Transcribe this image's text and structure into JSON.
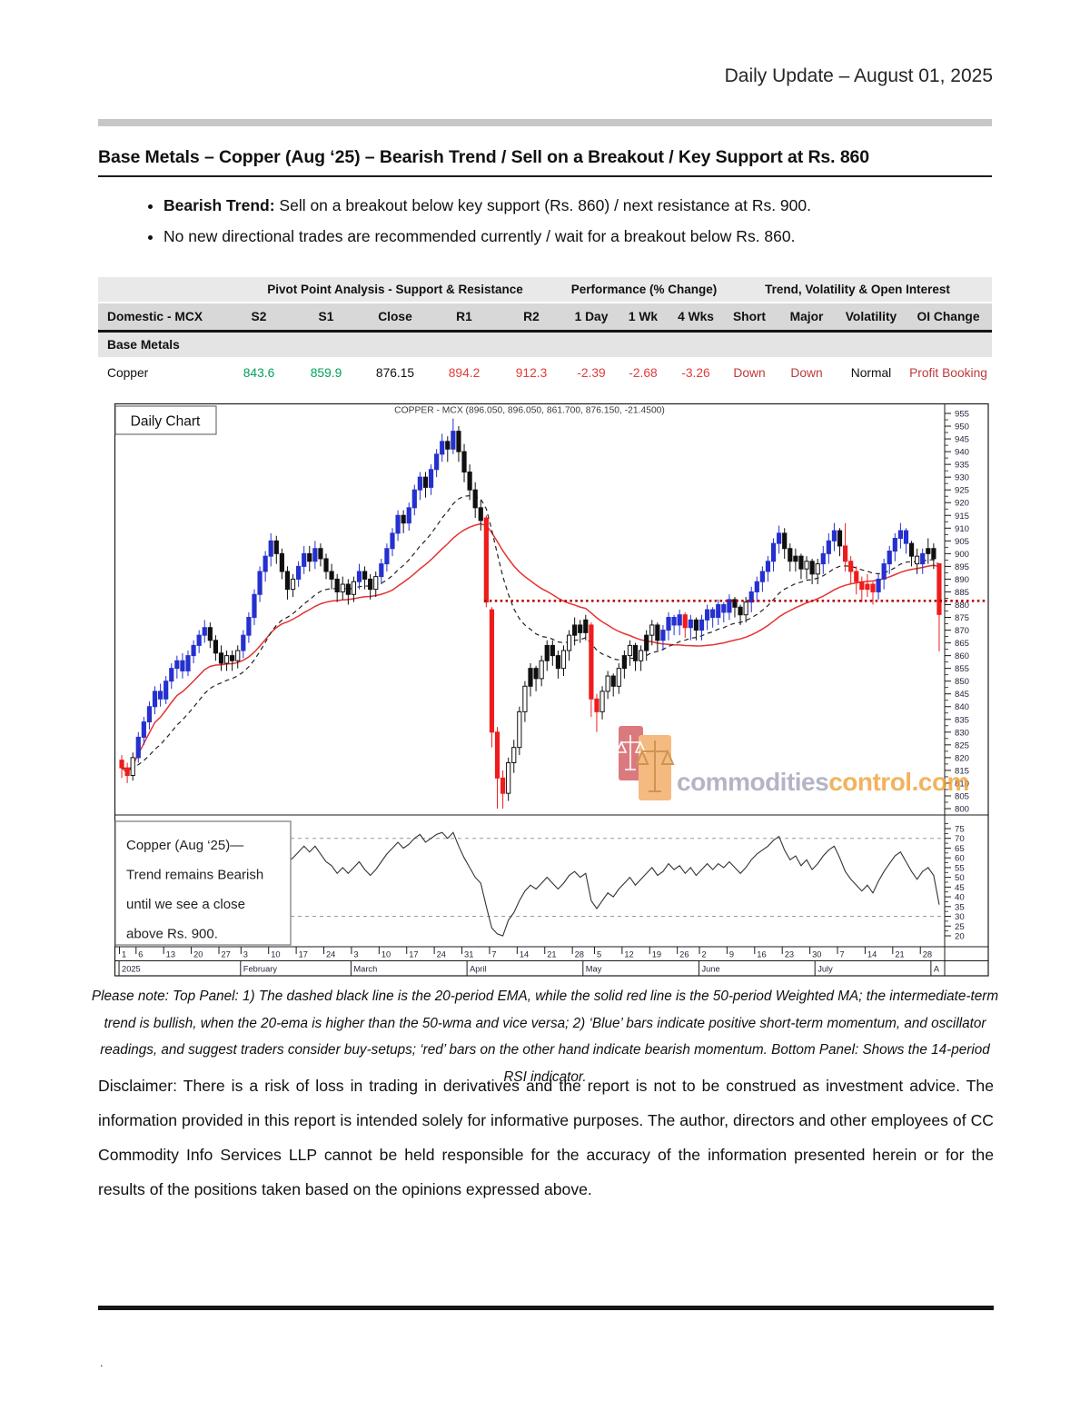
{
  "header": {
    "title": "Daily Update – August 01, 2025"
  },
  "article": {
    "title": "Base Metals – Copper (Aug  ‘25) – Bearish Trend / Sell on a Breakout / Key Support at Rs. 860",
    "bullets": [
      {
        "bold": "Bearish Trend:",
        "text": " Sell on a breakout below key support (Rs. 860) / next resistance at Rs. 900."
      },
      {
        "bold": "",
        "text": "No new directional trades are recommended currently / wait for a breakout below Rs. 860."
      }
    ]
  },
  "table": {
    "group_headers": [
      "Pivot Point Analysis - Support & Resistance",
      "Performance (% Change)",
      "Trend, Volatility & Open Interest"
    ],
    "columns": [
      "Domestic - MCX",
      "S2",
      "S1",
      "Close",
      "R1",
      "R2",
      "1 Day",
      "1 Wk",
      "4 Wks",
      "Short",
      "Major",
      "Volatility",
      "OI Change"
    ],
    "section": "Base Metals",
    "rows": [
      {
        "name": "Copper",
        "values": [
          "843.6",
          "859.9",
          "876.15",
          "894.2",
          "912.3",
          "-2.39",
          "-2.68",
          "-3.26",
          "Down",
          "Down",
          "Normal",
          "Profit Booking"
        ]
      }
    ]
  },
  "chart": {
    "panel_label": "Daily Chart",
    "title": "COPPER - MCX (896.050, 896.050, 861.700, 876.150, -21.4500)",
    "annotation_lines": [
      "Copper (Aug  ‘25)—",
      "Trend remains Bearish",
      "until we see a close",
      "above Rs. 900."
    ],
    "watermark": {
      "gray": "commodities",
      "orange": "control.com"
    }
  },
  "chart_data": {
    "type": "candlestick+rsi",
    "title": "COPPER - MCX (896.050, 896.050, 861.700, 876.150, -21.4500)",
    "price_axis": {
      "min": 800,
      "max": 955,
      "step": 5
    },
    "rsi_axis": {
      "min": 20,
      "max": 75,
      "step": 5,
      "guides": [
        70,
        30
      ]
    },
    "support_dotted_line": 881.5,
    "overlays": [
      "20-period EMA (dashed black)",
      "50-period WMA (solid red)"
    ],
    "x_months": [
      [
        "2025",
        0
      ],
      [
        "February",
        22
      ],
      [
        "March",
        42
      ],
      [
        "April",
        63
      ],
      [
        "May",
        84
      ],
      [
        "June",
        105
      ],
      [
        "July",
        126
      ],
      [
        "A",
        147
      ]
    ],
    "x_day_ticks": [
      [
        "1",
        0
      ],
      [
        "6",
        3
      ],
      [
        "13",
        8
      ],
      [
        "20",
        13
      ],
      [
        "27",
        18
      ],
      [
        "3",
        22
      ],
      [
        "10",
        27
      ],
      [
        "17",
        32
      ],
      [
        "24",
        37
      ],
      [
        "3",
        42
      ],
      [
        "10",
        47
      ],
      [
        "17",
        52
      ],
      [
        "24",
        57
      ],
      [
        "31",
        62
      ],
      [
        "7",
        67
      ],
      [
        "14",
        72
      ],
      [
        "21",
        77
      ],
      [
        "28",
        82
      ],
      [
        "5",
        86
      ],
      [
        "12",
        91
      ],
      [
        "19",
        96
      ],
      [
        "26",
        101
      ],
      [
        "2",
        105
      ],
      [
        "9",
        110
      ],
      [
        "16",
        115
      ],
      [
        "23",
        120
      ],
      [
        "30",
        125
      ],
      [
        "7",
        130
      ],
      [
        "14",
        135
      ],
      [
        "21",
        140
      ],
      [
        "28",
        145
      ]
    ],
    "candles": [
      [
        819,
        821,
        812,
        816,
        "r"
      ],
      [
        816,
        818,
        810,
        813,
        "r"
      ],
      [
        813,
        822,
        811,
        820,
        "w"
      ],
      [
        820,
        830,
        818,
        828,
        "b"
      ],
      [
        828,
        836,
        825,
        834,
        "b"
      ],
      [
        834,
        842,
        831,
        840,
        "b"
      ],
      [
        840,
        848,
        837,
        846,
        "b"
      ],
      [
        846,
        849,
        840,
        843,
        "b"
      ],
      [
        843,
        852,
        841,
        850,
        "b"
      ],
      [
        850,
        857,
        847,
        855,
        "b"
      ],
      [
        855,
        860,
        851,
        858,
        "b"
      ],
      [
        858,
        861,
        851,
        854,
        "b"
      ],
      [
        854,
        862,
        852,
        860,
        "b"
      ],
      [
        860,
        866,
        857,
        864,
        "b"
      ],
      [
        864,
        870,
        861,
        868,
        "b"
      ],
      [
        868,
        874,
        865,
        871,
        "b"
      ],
      [
        871,
        873,
        863,
        866,
        "k"
      ],
      [
        866,
        868,
        858,
        861,
        "k"
      ],
      [
        861,
        864,
        854,
        857,
        "k"
      ],
      [
        857,
        862,
        854,
        860,
        "w"
      ],
      [
        860,
        862,
        854,
        858,
        "k"
      ],
      [
        858,
        864,
        855,
        862,
        "w"
      ],
      [
        862,
        870,
        859,
        868,
        "b"
      ],
      [
        868,
        877,
        865,
        875,
        "b"
      ],
      [
        875,
        886,
        872,
        884,
        "b"
      ],
      [
        884,
        895,
        881,
        893,
        "b"
      ],
      [
        893,
        901,
        889,
        899,
        "b"
      ],
      [
        899,
        908,
        895,
        905,
        "b"
      ],
      [
        905,
        907,
        896,
        900,
        "k"
      ],
      [
        900,
        902,
        890,
        893,
        "k"
      ],
      [
        893,
        895,
        882,
        886,
        "k"
      ],
      [
        886,
        892,
        883,
        890,
        "w"
      ],
      [
        890,
        897,
        887,
        895,
        "b"
      ],
      [
        895,
        903,
        892,
        900,
        "b"
      ],
      [
        900,
        903,
        893,
        897,
        "k"
      ],
      [
        897,
        905,
        894,
        902,
        "b"
      ],
      [
        902,
        904,
        895,
        898,
        "k"
      ],
      [
        898,
        900,
        890,
        893,
        "k"
      ],
      [
        893,
        896,
        886,
        890,
        "k"
      ],
      [
        890,
        892,
        881,
        885,
        "k"
      ],
      [
        885,
        891,
        882,
        888,
        "w"
      ],
      [
        888,
        890,
        880,
        884,
        "k"
      ],
      [
        884,
        891,
        881,
        889,
        "w"
      ],
      [
        889,
        896,
        886,
        893,
        "b"
      ],
      [
        893,
        895,
        886,
        890,
        "k"
      ],
      [
        890,
        892,
        882,
        886,
        "k"
      ],
      [
        886,
        893,
        883,
        891,
        "w"
      ],
      [
        891,
        898,
        888,
        896,
        "b"
      ],
      [
        896,
        904,
        893,
        902,
        "b"
      ],
      [
        902,
        910,
        899,
        908,
        "b"
      ],
      [
        908,
        917,
        905,
        915,
        "b"
      ],
      [
        915,
        917,
        908,
        912,
        "k"
      ],
      [
        912,
        920,
        909,
        918,
        "b"
      ],
      [
        918,
        927,
        915,
        925,
        "b"
      ],
      [
        925,
        932,
        921,
        930,
        "b"
      ],
      [
        930,
        932,
        922,
        926,
        "k"
      ],
      [
        926,
        935,
        923,
        933,
        "b"
      ],
      [
        933,
        941,
        930,
        939,
        "b"
      ],
      [
        939,
        947,
        936,
        944,
        "b"
      ],
      [
        944,
        946,
        936,
        941,
        "k"
      ],
      [
        941,
        953,
        939,
        948,
        "b"
      ],
      [
        948,
        950,
        936,
        940,
        "k"
      ],
      [
        940,
        943,
        928,
        932,
        "k"
      ],
      [
        932,
        935,
        921,
        925,
        "k"
      ],
      [
        925,
        928,
        914,
        918,
        "k"
      ],
      [
        918,
        921,
        909,
        913,
        "k"
      ],
      [
        914,
        915,
        879,
        881,
        "r"
      ],
      [
        878,
        879,
        824,
        830,
        "r"
      ],
      [
        830,
        832,
        800,
        812,
        "r"
      ],
      [
        812,
        815,
        800,
        806,
        "r"
      ],
      [
        806,
        820,
        803,
        818,
        "w"
      ],
      [
        818,
        827,
        814,
        824,
        "w"
      ],
      [
        824,
        840,
        821,
        838,
        "w"
      ],
      [
        838,
        850,
        834,
        848,
        "w"
      ],
      [
        848,
        857,
        844,
        855,
        "k"
      ],
      [
        855,
        856,
        846,
        851,
        "k"
      ],
      [
        851,
        860,
        848,
        858,
        "w"
      ],
      [
        858,
        866,
        854,
        864,
        "k"
      ],
      [
        864,
        866,
        856,
        860,
        "k"
      ],
      [
        860,
        862,
        851,
        855,
        "k"
      ],
      [
        855,
        864,
        852,
        862,
        "w"
      ],
      [
        862,
        870,
        858,
        868,
        "w"
      ],
      [
        868,
        875,
        864,
        872,
        "k"
      ],
      [
        872,
        874,
        865,
        869,
        "k"
      ],
      [
        869,
        876,
        866,
        874,
        "k"
      ],
      [
        872,
        873,
        836,
        843,
        "r"
      ],
      [
        843,
        845,
        830,
        838,
        "r"
      ],
      [
        838,
        848,
        835,
        846,
        "w"
      ],
      [
        846,
        854,
        843,
        852,
        "w"
      ],
      [
        852,
        853,
        844,
        848,
        "k"
      ],
      [
        848,
        857,
        845,
        855,
        "w"
      ],
      [
        855,
        862,
        851,
        860,
        "k"
      ],
      [
        860,
        866,
        856,
        864,
        "w"
      ],
      [
        864,
        865,
        854,
        858,
        "k"
      ],
      [
        858,
        864,
        854,
        862,
        "w"
      ],
      [
        862,
        870,
        858,
        868,
        "k"
      ],
      [
        868,
        874,
        864,
        872,
        "w"
      ],
      [
        872,
        873,
        862,
        866,
        "k"
      ],
      [
        866,
        872,
        862,
        870,
        "b"
      ],
      [
        870,
        877,
        866,
        875,
        "b"
      ],
      [
        875,
        876,
        868,
        872,
        "b"
      ],
      [
        872,
        878,
        868,
        876,
        "b"
      ],
      [
        876,
        877,
        867,
        871,
        "r"
      ],
      [
        871,
        876,
        866,
        874,
        "b"
      ],
      [
        874,
        875,
        866,
        870,
        "k"
      ],
      [
        870,
        876,
        866,
        874,
        "b"
      ],
      [
        874,
        880,
        870,
        878,
        "b"
      ],
      [
        878,
        879,
        871,
        875,
        "b"
      ],
      [
        875,
        882,
        872,
        880,
        "b"
      ],
      [
        880,
        881,
        873,
        877,
        "b"
      ],
      [
        877,
        884,
        874,
        882,
        "b"
      ],
      [
        882,
        883,
        875,
        879,
        "k"
      ],
      [
        879,
        880,
        872,
        876,
        "k"
      ],
      [
        876,
        883,
        873,
        881,
        "w"
      ],
      [
        881,
        887,
        877,
        885,
        "b"
      ],
      [
        885,
        891,
        881,
        889,
        "b"
      ],
      [
        889,
        895,
        885,
        893,
        "b"
      ],
      [
        893,
        899,
        889,
        897,
        "b"
      ],
      [
        897,
        906,
        893,
        904,
        "b"
      ],
      [
        904,
        911,
        900,
        908,
        "b"
      ],
      [
        908,
        910,
        898,
        902,
        "k"
      ],
      [
        902,
        904,
        893,
        897,
        "k"
      ],
      [
        897,
        902,
        893,
        899,
        "k"
      ],
      [
        899,
        900,
        890,
        894,
        "k"
      ],
      [
        894,
        899,
        890,
        897,
        "w"
      ],
      [
        897,
        898,
        888,
        892,
        "k"
      ],
      [
        892,
        898,
        888,
        896,
        "w"
      ],
      [
        896,
        903,
        892,
        900,
        "b"
      ],
      [
        900,
        908,
        896,
        905,
        "b"
      ],
      [
        905,
        912,
        901,
        909,
        "b"
      ],
      [
        909,
        910,
        899,
        903,
        "k"
      ],
      [
        903,
        912,
        893,
        897,
        "r"
      ],
      [
        897,
        899,
        888,
        893,
        "r"
      ],
      [
        893,
        895,
        884,
        889,
        "r"
      ],
      [
        889,
        891,
        881,
        886,
        "r"
      ],
      [
        886,
        892,
        883,
        888,
        "r"
      ],
      [
        888,
        889,
        880,
        885,
        "r"
      ],
      [
        885,
        892,
        882,
        890,
        "b"
      ],
      [
        890,
        898,
        886,
        896,
        "b"
      ],
      [
        896,
        903,
        892,
        901,
        "b"
      ],
      [
        901,
        908,
        897,
        906,
        "b"
      ],
      [
        906,
        912,
        902,
        909,
        "b"
      ],
      [
        909,
        910,
        900,
        904,
        "b"
      ],
      [
        904,
        905,
        895,
        899,
        "k"
      ],
      [
        899,
        902,
        892,
        896,
        "w"
      ],
      [
        896,
        902,
        892,
        900,
        "b"
      ],
      [
        900,
        906,
        896,
        902,
        "k"
      ],
      [
        902,
        904,
        894,
        898,
        "k"
      ],
      [
        896.05,
        896.05,
        861.7,
        876.15,
        "r"
      ]
    ],
    "rsi": [
      45,
      43,
      47,
      52,
      56,
      59,
      62,
      60,
      63,
      65,
      66,
      63,
      65,
      67,
      68,
      69,
      62,
      58,
      55,
      57,
      55,
      58,
      62,
      66,
      69,
      71,
      72,
      73,
      68,
      63,
      58,
      60,
      63,
      66,
      63,
      66,
      62,
      58,
      56,
      52,
      55,
      52,
      55,
      58,
      54,
      51,
      54,
      58,
      62,
      65,
      68,
      65,
      67,
      70,
      72,
      68,
      70,
      72,
      73,
      70,
      73,
      66,
      60,
      55,
      50,
      47,
      35,
      24,
      21,
      20,
      28,
      32,
      38,
      43,
      46,
      44,
      47,
      50,
      47,
      44,
      47,
      51,
      53,
      50,
      52,
      38,
      34,
      38,
      42,
      40,
      44,
      47,
      50,
      46,
      49,
      52,
      55,
      51,
      53,
      57,
      54,
      56,
      52,
      55,
      51,
      54,
      57,
      54,
      57,
      55,
      58,
      55,
      52,
      55,
      59,
      62,
      64,
      66,
      69,
      71,
      64,
      59,
      61,
      56,
      59,
      54,
      57,
      61,
      64,
      66,
      60,
      53,
      49,
      46,
      43,
      46,
      42,
      48,
      53,
      57,
      61,
      63,
      58,
      53,
      49,
      53,
      55,
      51,
      36
    ]
  },
  "notes": {
    "text": "Please note: Top Panel: 1) The dashed black line is the 20-period EMA, while the solid red line is the 50-period Weighted MA; the intermediate-term trend is bullish, when the 20-ema is higher than the 50-wma and vice versa; 2)  ‘Blue’  bars indicate positive short-term momentum, and oscillator readings, and suggest traders consider buy-setups;  ‘red’  bars on the other hand indicate bearish momentum. Bottom Panel: Shows the 14-period RSI indicator."
  },
  "disclaimer": "Disclaimer: There is a risk of loss in trading in derivatives and the report is not to be construed as investment advice. The information provided in this report is intended solely for informative purposes. The author, directors and other employees of CC Commodity Info Services LLP cannot be held responsible for the accuracy of the information presented herein or for the results of the positions taken based on the opinions expressed above.",
  "footer": {
    "dot": "."
  },
  "colors": {
    "candle_blue": "#2530cf",
    "candle_red": "#ee1c1c",
    "wma_red": "#e53232",
    "support_red": "#b00000",
    "table_green": "#00a15e",
    "table_red": "#e23b3b",
    "watermark_orange": "#f1a038",
    "watermark_gray": "#a2a2b8"
  }
}
